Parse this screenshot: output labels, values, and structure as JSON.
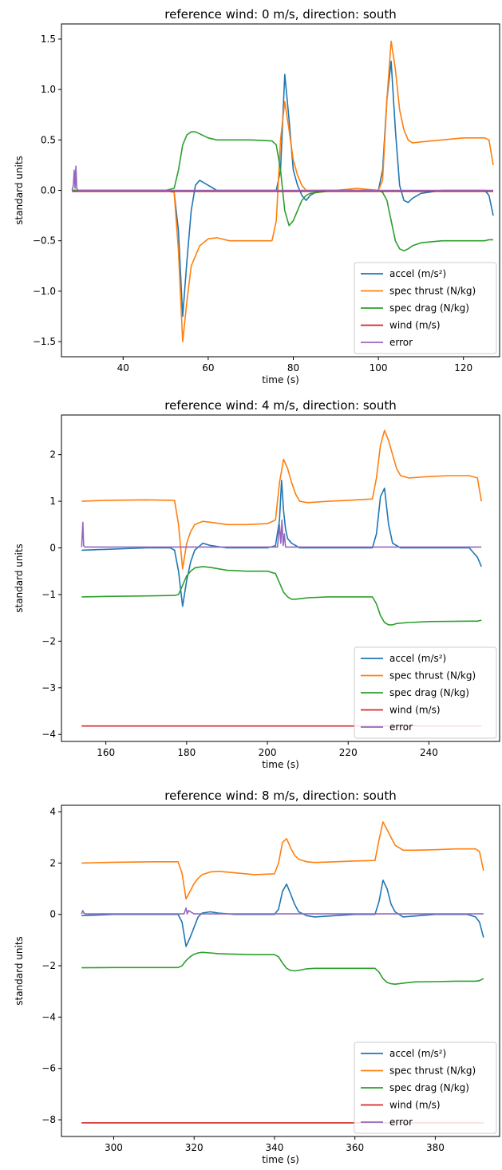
{
  "chart_data": [
    {
      "type": "line",
      "title": "reference wind: 0 m/s, direction: south",
      "xlabel": "time (s)",
      "ylabel": "standard units",
      "xlim": [
        25.5,
        128.5
      ],
      "ylim": [
        -1.65,
        1.65
      ],
      "xticks": [
        40,
        60,
        80,
        100,
        120
      ],
      "yticks": [
        -1.5,
        -1.0,
        -0.5,
        0.0,
        0.5,
        1.0,
        1.5
      ],
      "ytick_labels": [
        "−1.5",
        "−1.0",
        "−0.5",
        "0.0",
        "0.5",
        "1.0",
        "1.5"
      ],
      "grid": false,
      "legend_position": "lower right",
      "series": [
        {
          "name": "accel (m/s²)",
          "color": "#1f77b4",
          "x": [
            28,
            40,
            50,
            52,
            53,
            54,
            55,
            56,
            57,
            58,
            60,
            62,
            70,
            76,
            77,
            78,
            79,
            80,
            81,
            82,
            83,
            84,
            86,
            90,
            95,
            100,
            101,
            102,
            103,
            104,
            105,
            106,
            107,
            108,
            110,
            115,
            120,
            125,
            126,
            127
          ],
          "y": [
            0,
            0,
            0,
            -0.02,
            -0.4,
            -1.25,
            -0.7,
            -0.2,
            0.05,
            0.1,
            0.05,
            0,
            0,
            0,
            0.2,
            1.15,
            0.7,
            0.2,
            0.05,
            -0.05,
            -0.1,
            -0.05,
            0,
            0,
            0,
            0,
            0.2,
            0.9,
            1.28,
            0.6,
            0.05,
            -0.1,
            -0.12,
            -0.08,
            -0.03,
            0,
            0,
            0,
            -0.05,
            -0.25
          ]
        },
        {
          "name": "spec thrust (N/kg)",
          "color": "#ff7f0e",
          "x": [
            28,
            40,
            50,
            52,
            53,
            54,
            55,
            56,
            58,
            60,
            62,
            65,
            70,
            75,
            76,
            77,
            78,
            79,
            80,
            81,
            82,
            83,
            85,
            90,
            95,
            100,
            101,
            102,
            103,
            104,
            105,
            106,
            107,
            108,
            110,
            115,
            120,
            125,
            126,
            127
          ],
          "y": [
            0,
            0,
            0,
            -0.02,
            -0.6,
            -1.5,
            -1.1,
            -0.75,
            -0.55,
            -0.48,
            -0.47,
            -0.5,
            -0.5,
            -0.5,
            -0.3,
            0.5,
            0.88,
            0.6,
            0.3,
            0.15,
            0.05,
            0,
            0,
            0,
            0.02,
            0,
            0.1,
            0.9,
            1.48,
            1.2,
            0.8,
            0.6,
            0.5,
            0.47,
            0.48,
            0.5,
            0.52,
            0.52,
            0.5,
            0.25
          ]
        },
        {
          "name": "spec drag (N/kg)",
          "color": "#2ca02c",
          "x": [
            28,
            40,
            50,
            52,
            53,
            54,
            55,
            56,
            57,
            58,
            60,
            62,
            65,
            70,
            75,
            76,
            77,
            78,
            79,
            80,
            81,
            82,
            83,
            84,
            86,
            90,
            95,
            100,
            101,
            102,
            103,
            104,
            105,
            106,
            107,
            108,
            110,
            115,
            120,
            125,
            126,
            127
          ],
          "y": [
            0,
            0,
            0,
            0.02,
            0.2,
            0.45,
            0.55,
            0.58,
            0.58,
            0.56,
            0.52,
            0.5,
            0.5,
            0.5,
            0.49,
            0.45,
            0.2,
            -0.2,
            -0.35,
            -0.3,
            -0.2,
            -0.1,
            -0.05,
            -0.03,
            -0.02,
            0,
            0,
            0,
            -0.02,
            -0.1,
            -0.3,
            -0.5,
            -0.58,
            -0.6,
            -0.58,
            -0.55,
            -0.52,
            -0.5,
            -0.5,
            -0.5,
            -0.49,
            -0.49
          ]
        },
        {
          "name": "wind (m/s)",
          "color": "#d62728",
          "x": [
            28,
            127
          ],
          "y": [
            -0.01,
            -0.01
          ]
        },
        {
          "name": "error",
          "color": "#9467bd",
          "x": [
            28,
            28.3,
            28.5,
            28.7,
            28.9,
            29.1,
            29.4,
            30,
            40,
            60,
            80,
            100,
            127
          ],
          "y": [
            0,
            0.05,
            0.2,
            0.02,
            0.24,
            0.02,
            0,
            0,
            0,
            0,
            0,
            0,
            0
          ]
        }
      ]
    },
    {
      "type": "line",
      "title": "reference wind: 4 m/s, direction: south",
      "xlabel": "time (s)",
      "ylabel": "standard units",
      "xlim": [
        149,
        257.5
      ],
      "ylim": [
        -4.15,
        2.85
      ],
      "xticks": [
        160,
        180,
        200,
        220,
        240
      ],
      "yticks": [
        -4,
        -3,
        -2,
        -1,
        0,
        1,
        2
      ],
      "ytick_labels": [
        "−4",
        "−3",
        "−2",
        "−1",
        "0",
        "1",
        "2"
      ],
      "grid": false,
      "legend_position": "lower right",
      "series": [
        {
          "name": "accel (m/s²)",
          "color": "#1f77b4",
          "x": [
            154,
            170,
            176,
            177,
            178,
            179,
            180,
            181,
            182,
            184,
            186,
            190,
            200,
            202,
            203,
            203.5,
            204,
            204.5,
            205,
            206,
            207,
            208,
            210,
            215,
            220,
            226,
            227,
            228,
            229,
            230,
            231,
            233,
            240,
            250,
            251,
            252,
            253
          ],
          "y": [
            -0.05,
            0,
            0,
            -0.05,
            -0.5,
            -1.25,
            -0.7,
            -0.3,
            -0.05,
            0.1,
            0.05,
            0,
            0,
            0.05,
            0.6,
            1.45,
            0.8,
            0.4,
            0.2,
            0.1,
            0.05,
            0,
            0,
            0,
            0,
            0,
            0.3,
            1.1,
            1.28,
            0.5,
            0.1,
            0,
            0,
            0,
            -0.1,
            -0.2,
            -0.4
          ]
        },
        {
          "name": "spec thrust (N/kg)",
          "color": "#ff7f0e",
          "x": [
            154,
            160,
            170,
            177,
            178,
            179,
            180,
            181,
            182,
            184,
            186,
            190,
            195,
            200,
            202,
            203,
            204,
            205,
            206,
            207,
            208,
            210,
            215,
            220,
            226,
            227,
            228,
            229,
            230,
            231,
            232,
            233,
            235,
            240,
            245,
            250,
            252,
            253
          ],
          "y": [
            1.0,
            1.02,
            1.03,
            1.02,
            0.5,
            -0.45,
            0.1,
            0.35,
            0.5,
            0.57,
            0.55,
            0.5,
            0.5,
            0.52,
            0.6,
            1.4,
            1.9,
            1.7,
            1.4,
            1.15,
            1.0,
            0.97,
            1.0,
            1.02,
            1.05,
            1.5,
            2.2,
            2.52,
            2.3,
            2.0,
            1.7,
            1.55,
            1.5,
            1.53,
            1.55,
            1.55,
            1.5,
            1.0
          ]
        },
        {
          "name": "spec drag (N/kg)",
          "color": "#2ca02c",
          "x": [
            154,
            160,
            170,
            177,
            178,
            179,
            180,
            181,
            182,
            184,
            186,
            190,
            195,
            200,
            202,
            203,
            204,
            205,
            206,
            207,
            210,
            215,
            220,
            226,
            227,
            228,
            229,
            230,
            231,
            232,
            235,
            240,
            250,
            252,
            253
          ],
          "y": [
            -1.05,
            -1.04,
            -1.03,
            -1.02,
            -1.0,
            -0.8,
            -0.6,
            -0.5,
            -0.43,
            -0.4,
            -0.42,
            -0.48,
            -0.5,
            -0.5,
            -0.55,
            -0.75,
            -0.95,
            -1.05,
            -1.1,
            -1.1,
            -1.07,
            -1.05,
            -1.05,
            -1.05,
            -1.2,
            -1.45,
            -1.6,
            -1.65,
            -1.65,
            -1.62,
            -1.6,
            -1.58,
            -1.57,
            -1.57,
            -1.55
          ]
        },
        {
          "name": "wind (m/s)",
          "color": "#d62728",
          "x": [
            154,
            253
          ],
          "y": [
            -3.82,
            -3.82
          ]
        },
        {
          "name": "error",
          "color": "#9467bd",
          "x": [
            154,
            154.1,
            154.3,
            154.5,
            154.8,
            170,
            202.5,
            203,
            203.3,
            203.6,
            203.9,
            204.2,
            204.5,
            205,
            230,
            253
          ],
          "y": [
            0.02,
            0.2,
            0.55,
            0.05,
            0.02,
            0.02,
            0.02,
            0.5,
            0.1,
            0.6,
            0.05,
            0.3,
            0.02,
            0.02,
            0.02,
            0.02
          ]
        }
      ]
    },
    {
      "type": "line",
      "title": "reference wind: 8 m/s, direction: south",
      "xlabel": "time (s)",
      "ylabel": "standard units",
      "xlim": [
        287,
        396
      ],
      "ylim": [
        -8.65,
        4.25
      ],
      "xticks": [
        300,
        320,
        340,
        360,
        380
      ],
      "yticks": [
        -8,
        -6,
        -4,
        -2,
        0,
        2,
        4
      ],
      "ytick_labels": [
        "−8",
        "−6",
        "−4",
        "−2",
        "0",
        "2",
        "4"
      ],
      "grid": false,
      "legend_position": "lower right",
      "series": [
        {
          "name": "accel (m/s²)",
          "color": "#1f77b4",
          "x": [
            292,
            300,
            310,
            316,
            317,
            318,
            319,
            320,
            321,
            322,
            324,
            326,
            330,
            340,
            341,
            342,
            343,
            344,
            345,
            346,
            348,
            350,
            355,
            360,
            365,
            366,
            367,
            368,
            369,
            370,
            372,
            380,
            388,
            390,
            391,
            392
          ],
          "y": [
            -0.05,
            0,
            0,
            0,
            -0.3,
            -1.25,
            -0.9,
            -0.5,
            -0.1,
            0.05,
            0.1,
            0.05,
            0,
            0,
            0.2,
            0.9,
            1.18,
            0.8,
            0.4,
            0.1,
            -0.05,
            -0.1,
            -0.05,
            0,
            0,
            0.5,
            1.33,
            1.0,
            0.4,
            0.1,
            -0.1,
            0,
            0,
            -0.1,
            -0.3,
            -0.9
          ]
        },
        {
          "name": "spec thrust (N/kg)",
          "color": "#ff7f0e",
          "x": [
            292,
            300,
            310,
            316,
            317,
            318,
            319,
            320,
            321,
            322,
            324,
            326,
            330,
            335,
            340,
            341,
            342,
            343,
            344,
            345,
            346,
            348,
            350,
            355,
            360,
            365,
            366,
            367,
            368,
            369,
            370,
            372,
            375,
            380,
            385,
            390,
            391,
            392
          ],
          "y": [
            2.0,
            2.03,
            2.05,
            2.05,
            1.6,
            0.6,
            0.9,
            1.2,
            1.4,
            1.55,
            1.65,
            1.68,
            1.62,
            1.55,
            1.58,
            2.0,
            2.8,
            2.95,
            2.6,
            2.3,
            2.15,
            2.05,
            2.02,
            2.05,
            2.08,
            2.1,
            2.9,
            3.6,
            3.3,
            3.0,
            2.7,
            2.5,
            2.5,
            2.52,
            2.55,
            2.55,
            2.45,
            1.7
          ]
        },
        {
          "name": "spec drag (N/kg)",
          "color": "#2ca02c",
          "x": [
            292,
            300,
            310,
            316,
            317,
            318,
            319,
            320,
            321,
            322,
            324,
            326,
            330,
            335,
            340,
            341,
            342,
            343,
            344,
            345,
            346,
            348,
            350,
            355,
            360,
            365,
            366,
            367,
            368,
            369,
            370,
            372,
            375,
            380,
            385,
            390,
            391,
            392
          ],
          "y": [
            -2.08,
            -2.07,
            -2.07,
            -2.07,
            -2.0,
            -1.8,
            -1.65,
            -1.55,
            -1.5,
            -1.48,
            -1.5,
            -1.53,
            -1.55,
            -1.57,
            -1.57,
            -1.65,
            -1.9,
            -2.1,
            -2.18,
            -2.2,
            -2.18,
            -2.12,
            -2.1,
            -2.1,
            -2.1,
            -2.1,
            -2.25,
            -2.5,
            -2.65,
            -2.7,
            -2.72,
            -2.68,
            -2.63,
            -2.62,
            -2.6,
            -2.6,
            -2.58,
            -2.5
          ]
        },
        {
          "name": "wind (m/s)",
          "color": "#d62728",
          "x": [
            292,
            392
          ],
          "y": [
            -8.12,
            -8.12
          ]
        },
        {
          "name": "error",
          "color": "#9467bd",
          "x": [
            292,
            292.3,
            292.6,
            293,
            317.5,
            318,
            318.3,
            318.6,
            320,
            392
          ],
          "y": [
            0.02,
            0.15,
            0.05,
            0.02,
            0.02,
            0.25,
            0.02,
            0.15,
            0.02,
            0.02
          ]
        }
      ]
    }
  ]
}
